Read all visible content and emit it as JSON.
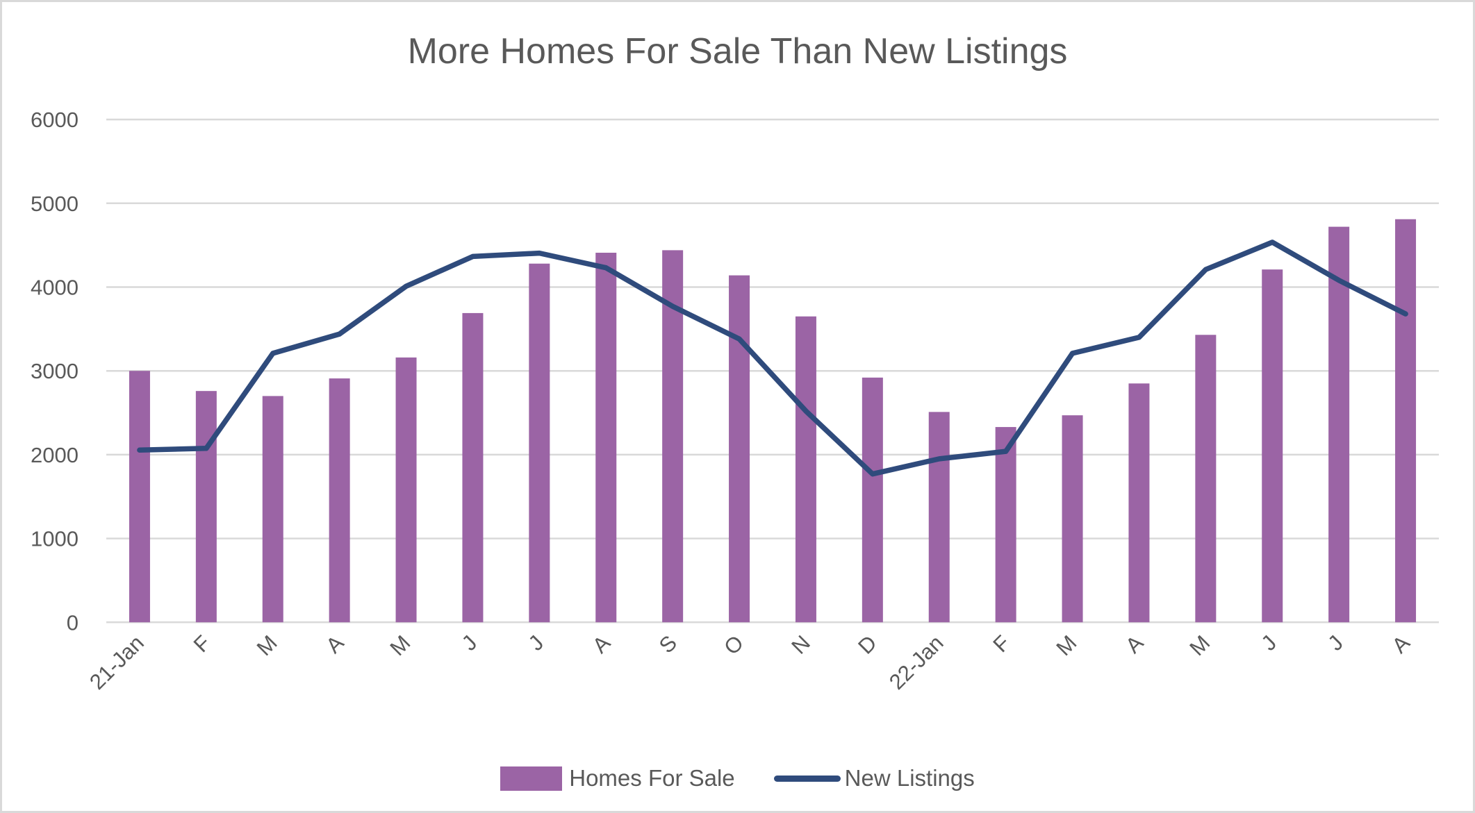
{
  "chart_data": {
    "type": "bar+line",
    "title": "More Homes For Sale Than New Listings",
    "xlabel": "",
    "ylabel": "",
    "ylim": [
      0,
      6000
    ],
    "yticks": [
      0,
      1000,
      2000,
      3000,
      4000,
      5000,
      6000
    ],
    "grid": true,
    "legend_position": "bottom",
    "categories": [
      "21-Jan",
      "F",
      "M",
      "A",
      "M",
      "J",
      "J",
      "A",
      "S",
      "O",
      "N",
      "D",
      "22-Jan",
      "F",
      "M",
      "A",
      "M",
      "J",
      "J",
      "A"
    ],
    "series": [
      {
        "name": "Homes For Sale",
        "type": "bar",
        "color": "#9B64A5",
        "values": [
          3000,
          2760,
          2700,
          2910,
          3160,
          3690,
          4280,
          4410,
          4440,
          4140,
          3650,
          2920,
          2510,
          2330,
          2470,
          2850,
          3430,
          4210,
          4720,
          4810
        ]
      },
      {
        "name": "New Listings",
        "type": "line",
        "color": "#2F4B7C",
        "values": [
          2055,
          2075,
          3210,
          3440,
          4010,
          4365,
          4405,
          4230,
          3770,
          3380,
          2520,
          1770,
          1950,
          2040,
          3210,
          3400,
          4210,
          4535,
          4080,
          3680
        ]
      }
    ]
  },
  "colors": {
    "bar": "#9B64A5",
    "line": "#2F4B7C",
    "grid": "#D9D9D9",
    "text": "#595959",
    "border": "#D9D9D9"
  },
  "legend": {
    "items": [
      {
        "label": "Homes For Sale",
        "icon": "bar-swatch"
      },
      {
        "label": "New Listings",
        "icon": "line-swatch"
      }
    ]
  }
}
